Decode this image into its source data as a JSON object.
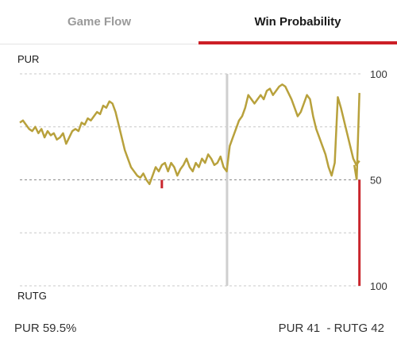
{
  "tabs": [
    {
      "label": "Game Flow",
      "active": false
    },
    {
      "label": "Win Probability",
      "active": true
    }
  ],
  "colors": {
    "accent": "#cc1f26",
    "line": "#b8a13c",
    "home_line": "#c9252c",
    "grid": "#c8c8c8",
    "marker": "#cfcfcf"
  },
  "teams": {
    "top": "PUR",
    "bottom": "RUTG"
  },
  "axis_labels": {
    "top": "100",
    "middle": "50",
    "bottom": "100"
  },
  "footer": {
    "win_pct": "PUR 59.5%",
    "score": "PUR 41  - RUTG 42"
  },
  "chart_data": {
    "type": "line",
    "title": "",
    "x_unit": "fraction of game",
    "y_unit": "PUR win probability (%)",
    "ylim": [
      0,
      100
    ],
    "grid": true,
    "marker_x": 0.604,
    "series": [
      {
        "x": [
          0.0,
          0.009,
          0.018,
          0.027,
          0.036,
          0.045,
          0.054,
          0.063,
          0.072,
          0.081,
          0.09,
          0.099,
          0.108,
          0.117,
          0.126,
          0.135,
          0.144,
          0.153,
          0.162,
          0.171,
          0.18,
          0.189,
          0.198,
          0.207,
          0.216,
          0.225,
          0.234,
          0.243,
          0.252,
          0.261,
          0.27,
          0.279,
          0.288,
          0.297,
          0.306,
          0.315,
          0.324,
          0.333,
          0.342,
          0.351,
          0.36,
          0.369,
          0.378,
          0.387,
          0.396,
          0.405,
          0.414,
          0.423,
          0.432,
          0.441,
          0.45,
          0.459,
          0.468,
          0.477,
          0.486,
          0.495,
          0.504,
          0.513,
          0.522,
          0.531,
          0.54,
          0.549,
          0.558,
          0.567,
          0.576,
          0.585,
          0.594,
          0.603,
          0.612,
          0.621,
          0.63,
          0.639,
          0.648,
          0.657,
          0.666,
          0.675,
          0.684,
          0.693,
          0.702,
          0.711,
          0.72,
          0.729,
          0.738,
          0.747,
          0.756,
          0.765,
          0.774,
          0.783,
          0.792,
          0.801,
          0.81,
          0.819,
          0.828,
          0.837,
          0.846,
          0.855,
          0.864,
          0.873,
          0.882,
          0.891,
          0.9,
          0.909,
          0.918,
          0.927,
          0.936,
          0.945,
          0.954,
          0.963,
          0.972,
          0.981,
          0.99,
          1.0
        ],
        "y": [
          77,
          78,
          76,
          74,
          73,
          75,
          72,
          74,
          70,
          73,
          71,
          72,
          69,
          70,
          72,
          67,
          70,
          73,
          74,
          73,
          77,
          76,
          79,
          78,
          80,
          82,
          81,
          85,
          84,
          87,
          86,
          82,
          76,
          70,
          64,
          60,
          56,
          54,
          52,
          51,
          53,
          50,
          48,
          52,
          56,
          54,
          57,
          58,
          54,
          58,
          56,
          52,
          55,
          57,
          60,
          56,
          54,
          58,
          56,
          60,
          58,
          62,
          60,
          57,
          58,
          61,
          56,
          54,
          66,
          70,
          74,
          78,
          80,
          84,
          90,
          88,
          86,
          88,
          90,
          88,
          92,
          93,
          90,
          92,
          94,
          95,
          94,
          91,
          88,
          84,
          80,
          82,
          86,
          90,
          88,
          80,
          74,
          70,
          66,
          62,
          56,
          52,
          58,
          89,
          84,
          78,
          72,
          66,
          60,
          57,
          59,
          59.5
        ]
      }
    ]
  }
}
